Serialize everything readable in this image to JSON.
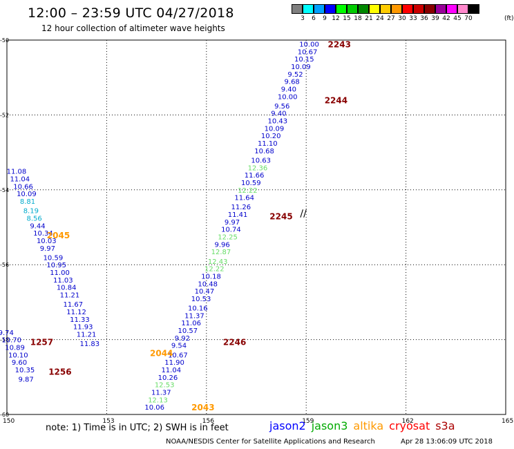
{
  "title": "12:00 – 23:59 UTC 04/27/2018",
  "subtitle": "12 hour collection of altimeter wave heights",
  "legend": {
    "colors": [
      "#808080",
      "#00ffff",
      "#00a0ff",
      "#0000ff",
      "#00ff00",
      "#00cc00",
      "#008800",
      "#ffff00",
      "#ffcc00",
      "#ff9900",
      "#ff0000",
      "#cc0000",
      "#880000",
      "#990099",
      "#ff00ff",
      "#ff88cc",
      "#000000"
    ],
    "labels": [
      "3",
      "6",
      "9",
      "12",
      "15",
      "18",
      "21",
      "24",
      "27",
      "30",
      "33",
      "36",
      "39",
      "42",
      "45",
      "70"
    ],
    "unit": "(ft)"
  },
  "footer_note": "note: 1) Time is in UTC; 2) SWH is in feet",
  "satellites": [
    {
      "name": "jason2",
      "color": "#0000ff"
    },
    {
      "name": "jason3",
      "color": "#00aa00"
    },
    {
      "name": "altika",
      "color": "#ff9900"
    },
    {
      "name": "cryosat",
      "color": "#ff0000"
    },
    {
      "name": "s3a",
      "color": "#aa0000"
    }
  ],
  "credit": "NOAA/NESDIS Center for Satellite Applications and Research",
  "timestamp": "Apr 28 13:06:09 UTC 2018",
  "chart_data": {
    "type": "scatter",
    "xlim": [
      150,
      165
    ],
    "ylim": [
      -60,
      -50
    ],
    "xticks": [
      150,
      153,
      156,
      159,
      162,
      165
    ],
    "yticks": [
      -50,
      -52,
      -54,
      -56,
      -58,
      -60
    ],
    "grid": true,
    "points": [
      {
        "x": 159.0,
        "y": -50.1,
        "v": "10.00",
        "c": "#0000cc"
      },
      {
        "x": 158.95,
        "y": -50.3,
        "v": "10.67",
        "c": "#0000cc"
      },
      {
        "x": 158.85,
        "y": -50.5,
        "v": "10.15",
        "c": "#0000cc"
      },
      {
        "x": 158.75,
        "y": -50.7,
        "v": "10.09",
        "c": "#0000cc"
      },
      {
        "x": 158.65,
        "y": -50.9,
        "v": "9.52",
        "c": "#0000cc"
      },
      {
        "x": 158.55,
        "y": -51.1,
        "v": "9.68",
        "c": "#0000cc"
      },
      {
        "x": 158.45,
        "y": -51.3,
        "v": "9.40",
        "c": "#0000cc"
      },
      {
        "x": 158.35,
        "y": -51.5,
        "v": "10.00",
        "c": "#0000cc"
      },
      {
        "x": 158.25,
        "y": -51.75,
        "v": "9.56",
        "c": "#0000cc"
      },
      {
        "x": 158.15,
        "y": -51.95,
        "v": "9.40",
        "c": "#0000cc"
      },
      {
        "x": 158.05,
        "y": -52.15,
        "v": "10.43",
        "c": "#0000cc"
      },
      {
        "x": 157.95,
        "y": -52.35,
        "v": "10.09",
        "c": "#0000cc"
      },
      {
        "x": 157.85,
        "y": -52.55,
        "v": "10.20",
        "c": "#0000cc"
      },
      {
        "x": 157.75,
        "y": -52.75,
        "v": "11.10",
        "c": "#0000cc"
      },
      {
        "x": 157.65,
        "y": -52.95,
        "v": "10.68",
        "c": "#0000cc"
      },
      {
        "x": 157.55,
        "y": -53.2,
        "v": "10.63",
        "c": "#0000cc"
      },
      {
        "x": 157.45,
        "y": -53.4,
        "v": "12.36",
        "c": "#66dd66"
      },
      {
        "x": 157.35,
        "y": -53.6,
        "v": "11.66",
        "c": "#0000cc"
      },
      {
        "x": 157.25,
        "y": -53.8,
        "v": "10.59",
        "c": "#0000cc"
      },
      {
        "x": 157.15,
        "y": -54.0,
        "v": "12.22",
        "c": "#66dd66"
      },
      {
        "x": 157.05,
        "y": -54.2,
        "v": "11.64",
        "c": "#0000cc"
      },
      {
        "x": 156.95,
        "y": -54.45,
        "v": "11.26",
        "c": "#0000cc"
      },
      {
        "x": 156.85,
        "y": -54.65,
        "v": "11.41",
        "c": "#0000cc"
      },
      {
        "x": 156.75,
        "y": -54.85,
        "v": "9.97",
        "c": "#0000cc"
      },
      {
        "x": 156.65,
        "y": -55.05,
        "v": "10.74",
        "c": "#0000cc"
      },
      {
        "x": 156.55,
        "y": -55.25,
        "v": "12.25",
        "c": "#66dd66"
      },
      {
        "x": 156.45,
        "y": -55.45,
        "v": "9.96",
        "c": "#0000cc"
      },
      {
        "x": 156.35,
        "y": -55.65,
        "v": "12.87",
        "c": "#66dd66"
      },
      {
        "x": 156.25,
        "y": -55.9,
        "v": "12.43",
        "c": "#66dd66"
      },
      {
        "x": 156.15,
        "y": -56.1,
        "v": "12.22",
        "c": "#66dd66"
      },
      {
        "x": 156.05,
        "y": -56.3,
        "v": "10.18",
        "c": "#0000cc"
      },
      {
        "x": 155.95,
        "y": -56.5,
        "v": "10.48",
        "c": "#0000cc"
      },
      {
        "x": 155.85,
        "y": -56.7,
        "v": "10.47",
        "c": "#0000cc"
      },
      {
        "x": 155.75,
        "y": -56.9,
        "v": "10.53",
        "c": "#0000cc"
      },
      {
        "x": 155.65,
        "y": -57.15,
        "v": "10.16",
        "c": "#0000cc"
      },
      {
        "x": 155.55,
        "y": -57.35,
        "v": "11.37",
        "c": "#0000cc"
      },
      {
        "x": 155.45,
        "y": -57.55,
        "v": "11.06",
        "c": "#0000cc"
      },
      {
        "x": 155.35,
        "y": -57.75,
        "v": "10.57",
        "c": "#0000cc"
      },
      {
        "x": 155.25,
        "y": -57.95,
        "v": "9.92",
        "c": "#0000cc"
      },
      {
        "x": 155.15,
        "y": -58.15,
        "v": "9.54",
        "c": "#0000cc"
      },
      {
        "x": 155.05,
        "y": -58.4,
        "v": "10.67",
        "c": "#0000cc"
      },
      {
        "x": 154.95,
        "y": -58.6,
        "v": "11.90",
        "c": "#0000cc"
      },
      {
        "x": 154.85,
        "y": -58.8,
        "v": "11.04",
        "c": "#0000cc"
      },
      {
        "x": 154.75,
        "y": -59.0,
        "v": "10.26",
        "c": "#0000cc"
      },
      {
        "x": 154.65,
        "y": -59.2,
        "v": "12.53",
        "c": "#66dd66"
      },
      {
        "x": 154.55,
        "y": -59.4,
        "v": "11.37",
        "c": "#0000cc"
      },
      {
        "x": 154.45,
        "y": -59.6,
        "v": "12.13",
        "c": "#66dd66"
      },
      {
        "x": 154.35,
        "y": -59.8,
        "v": "10.06",
        "c": "#0000cc"
      },
      {
        "x": 150.2,
        "y": -53.5,
        "v": "11.08",
        "c": "#0000cc"
      },
      {
        "x": 150.3,
        "y": -53.7,
        "v": "11.04",
        "c": "#0000cc"
      },
      {
        "x": 150.4,
        "y": -53.9,
        "v": "10.66",
        "c": "#0000cc"
      },
      {
        "x": 150.5,
        "y": -54.1,
        "v": "10.09",
        "c": "#0000cc"
      },
      {
        "x": 150.6,
        "y": -54.3,
        "v": "8.81",
        "c": "#00aacc"
      },
      {
        "x": 150.7,
        "y": -54.55,
        "v": "8.19",
        "c": "#00aacc"
      },
      {
        "x": 150.8,
        "y": -54.75,
        "v": "8.56",
        "c": "#00aacc"
      },
      {
        "x": 150.9,
        "y": -54.95,
        "v": "9.44",
        "c": "#0000cc"
      },
      {
        "x": 151.0,
        "y": -55.15,
        "v": "10.34",
        "c": "#0000cc"
      },
      {
        "x": 151.1,
        "y": -55.35,
        "v": "10.03",
        "c": "#0000cc"
      },
      {
        "x": 151.2,
        "y": -55.55,
        "v": "9.97",
        "c": "#0000cc"
      },
      {
        "x": 151.3,
        "y": -55.8,
        "v": "10.59",
        "c": "#0000cc"
      },
      {
        "x": 151.4,
        "y": -56.0,
        "v": "10.95",
        "c": "#0000cc"
      },
      {
        "x": 151.5,
        "y": -56.2,
        "v": "11.00",
        "c": "#0000cc"
      },
      {
        "x": 151.6,
        "y": -56.4,
        "v": "11.03",
        "c": "#0000cc"
      },
      {
        "x": 151.7,
        "y": -56.6,
        "v": "10.84",
        "c": "#0000cc"
      },
      {
        "x": 151.8,
        "y": -56.8,
        "v": "11.21",
        "c": "#0000cc"
      },
      {
        "x": 151.9,
        "y": -57.05,
        "v": "11.67",
        "c": "#0000cc"
      },
      {
        "x": 152.0,
        "y": -57.25,
        "v": "11.12",
        "c": "#0000cc"
      },
      {
        "x": 152.1,
        "y": -57.45,
        "v": "11.33",
        "c": "#0000cc"
      },
      {
        "x": 152.2,
        "y": -57.65,
        "v": "11.93",
        "c": "#0000cc"
      },
      {
        "x": 152.3,
        "y": -57.85,
        "v": "11.21",
        "c": "#0000cc"
      },
      {
        "x": 152.4,
        "y": -58.1,
        "v": "11.83",
        "c": "#0000cc"
      },
      {
        "x": 149.95,
        "y": -57.8,
        "v": "9.74",
        "c": "#0000cc"
      },
      {
        "x": 150.05,
        "y": -58.0,
        "v": "10.70",
        "c": "#0000cc"
      },
      {
        "x": 150.15,
        "y": -58.2,
        "v": "10.89",
        "c": "#0000cc"
      },
      {
        "x": 150.25,
        "y": -58.4,
        "v": "10.10",
        "c": "#0000cc"
      },
      {
        "x": 150.35,
        "y": -58.6,
        "v": "9.60",
        "c": "#0000cc"
      },
      {
        "x": 150.45,
        "y": -58.8,
        "v": "10.35",
        "c": "#0000cc"
      },
      {
        "x": 150.55,
        "y": -59.05,
        "v": "9.87",
        "c": "#0000cc"
      }
    ],
    "time_labels": [
      {
        "x": 159.9,
        "y": -50.1,
        "v": "2243",
        "c": "#880000"
      },
      {
        "x": 159.8,
        "y": -51.6,
        "v": "2244",
        "c": "#880000"
      },
      {
        "x": 158.15,
        "y": -54.7,
        "v": "2245",
        "c": "#880000"
      },
      {
        "x": 156.75,
        "y": -58.05,
        "v": "2246",
        "c": "#880000"
      },
      {
        "x": 151.45,
        "y": -55.2,
        "v": "2045",
        "c": "#ff9900"
      },
      {
        "x": 154.55,
        "y": -58.35,
        "v": "2044",
        "c": "#ff9900"
      },
      {
        "x": 155.8,
        "y": -59.8,
        "v": "2043",
        "c": "#ff9900"
      },
      {
        "x": 150.95,
        "y": -58.05,
        "v": "1257",
        "c": "#880000"
      },
      {
        "x": 151.5,
        "y": -58.85,
        "v": "1256",
        "c": "#880000"
      }
    ],
    "marks": [
      {
        "x": 158.9,
        "y": -54.6,
        "v": "∕∕",
        "c": "#000000"
      }
    ]
  }
}
